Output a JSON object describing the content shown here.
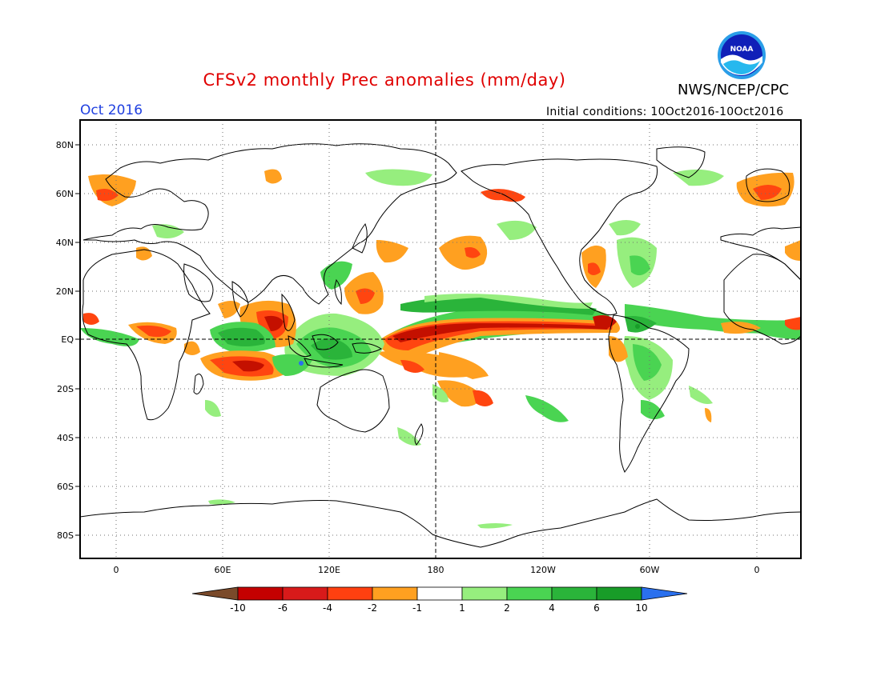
{
  "header": {
    "title": "CFSv2 monthly Prec anomalies (mm/day)",
    "agency": "NWS/NCEP/CPC",
    "logo_text": "NOAA",
    "month": "Oct 2016",
    "initial_conditions": "Initial conditions: 10Oct2016-10Oct2016"
  },
  "map": {
    "projection": "equirectangular",
    "lon_range": [
      -20,
      382
    ],
    "lat_range": [
      -90,
      90
    ],
    "lat_ticks": [
      "80N",
      "60N",
      "40N",
      "20N",
      "EQ",
      "20S",
      "40S",
      "60S",
      "80S"
    ],
    "lon_ticks": [
      "0",
      "60E",
      "120E",
      "180",
      "120W",
      "60W",
      "0"
    ],
    "grid": "dotted",
    "reference_lines": [
      "equator",
      "dateline"
    ]
  },
  "colorbar": {
    "labels": [
      "-10",
      "-6",
      "-4",
      "-2",
      "-1",
      "1",
      "2",
      "4",
      "6",
      "10"
    ],
    "colors": [
      "#7a4a2a",
      "#c40000",
      "#d81a1a",
      "#ff4010",
      "#ffa020",
      "#ffffff",
      "#96ee7e",
      "#4ad452",
      "#2ab43a",
      "#189c28",
      "#2a70ee"
    ]
  },
  "anomaly_colors": {
    "dry_strong": "#c41000",
    "dry_medium": "#ff4510",
    "dry_light": "#ffa020",
    "wet_light": "#96ee7e",
    "wet_medium": "#4ad452",
    "wet_strong": "#24a834"
  }
}
